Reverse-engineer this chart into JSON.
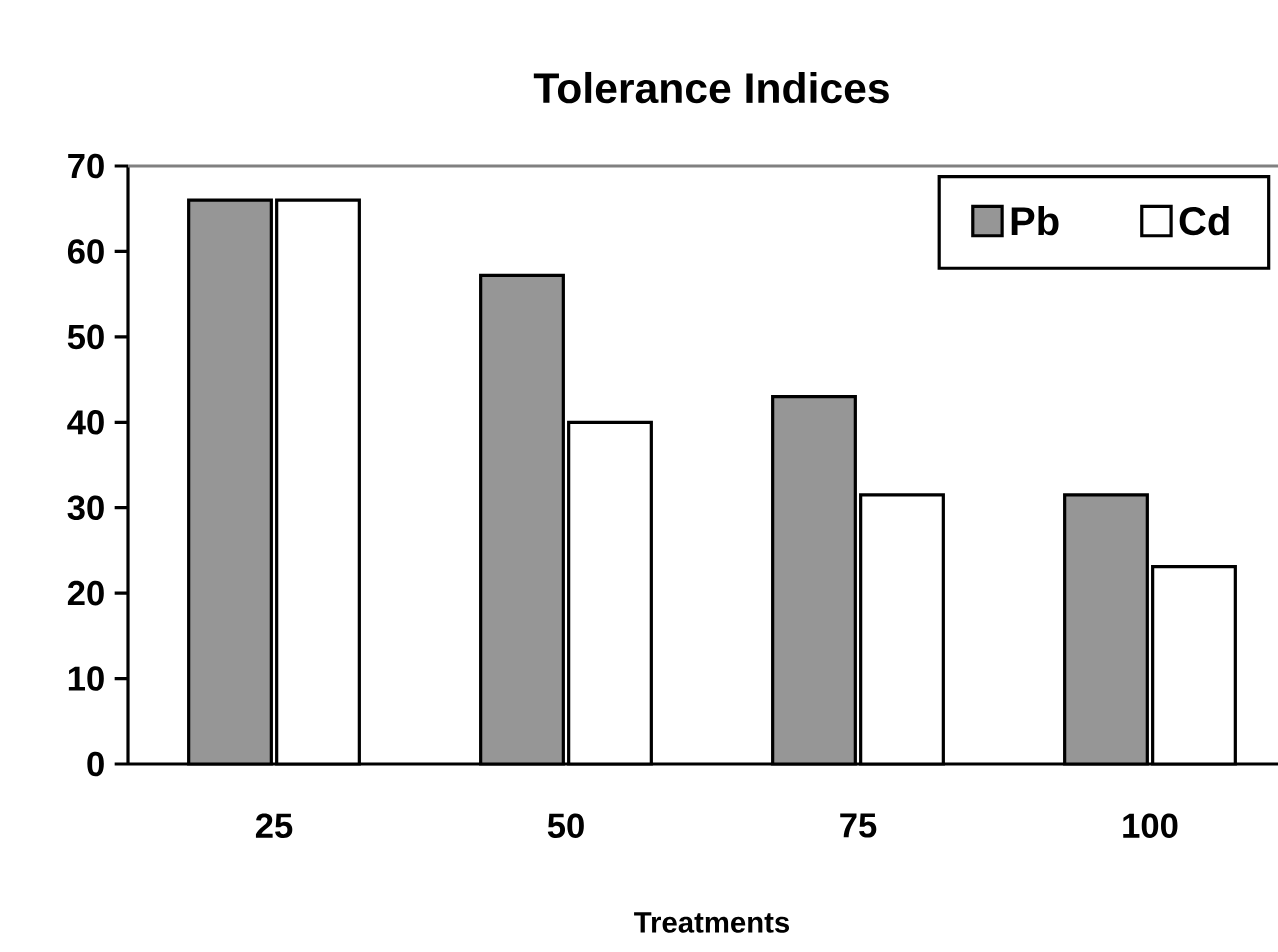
{
  "chart_data": {
    "type": "bar",
    "title": "Tolerance Indices",
    "xlabel": "Treatments",
    "categories": [
      "25",
      "50",
      "75",
      "100"
    ],
    "series": [
      {
        "name": "Pb",
        "color": "#969696",
        "values": [
          66,
          57.2,
          43,
          31.5
        ]
      },
      {
        "name": "Cd",
        "color": "#ffffff",
        "values": [
          66,
          40,
          31.5,
          23.1
        ]
      }
    ],
    "ylim": [
      0,
      70
    ],
    "yticks": [
      0,
      10,
      20,
      30,
      40,
      50,
      60,
      70
    ],
    "legend": "top right",
    "grid": false
  }
}
